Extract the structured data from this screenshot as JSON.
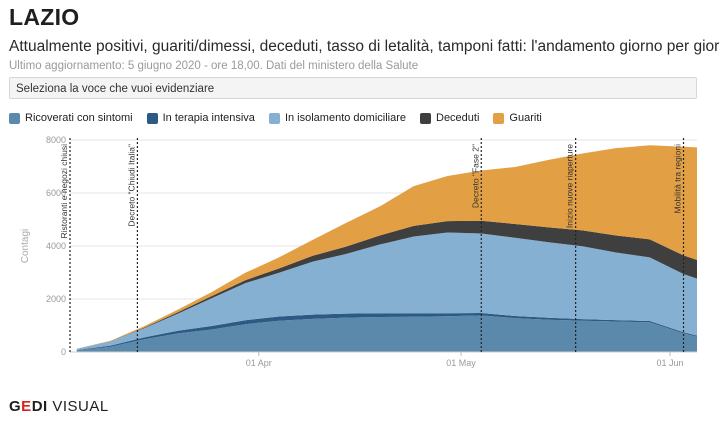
{
  "header": {
    "title": "LAZIO",
    "subtitle": "Attualmente positivi, guariti/dimessi, deceduti, tasso di letalità, tamponi fatti: l'andamento giorno per giorno",
    "updated": "Ultimo aggiornamento: 5 giugno 2020 - ore 18,00. Dati del ministero della Salute"
  },
  "selector": {
    "label": "Seleziona la voce che vuoi evidenziare"
  },
  "logo": {
    "brand_g": "G",
    "brand_e": "E",
    "brand_di": "DI",
    "unit": " VISUAL"
  },
  "colors": {
    "ricoverati": "#5b89ab",
    "terapia": "#2d5a83",
    "isolamento": "#86b0d2",
    "deceduti": "#3f3f3f",
    "guariti": "#e29f44"
  },
  "chart_data": {
    "type": "area",
    "stacked": true,
    "x": [
      "2020-03-05",
      "2020-03-10",
      "2020-03-15",
      "2020-03-20",
      "2020-03-25",
      "2020-03-30",
      "2020-04-04",
      "2020-04-09",
      "2020-04-14",
      "2020-04-19",
      "2020-04-24",
      "2020-04-29",
      "2020-05-04",
      "2020-05-09",
      "2020-05-14",
      "2020-05-19",
      "2020-05-24",
      "2020-05-29",
      "2020-06-03",
      "2020-06-05"
    ],
    "series": [
      {
        "name": "Ricoverati con sintomi",
        "values": [
          60,
          200,
          480,
          700,
          850,
          1050,
          1180,
          1250,
          1300,
          1320,
          1330,
          1350,
          1380,
          1280,
          1220,
          1180,
          1150,
          1120,
          700,
          580
        ]
      },
      {
        "name": "In terapia intensiva",
        "values": [
          15,
          40,
          70,
          100,
          130,
          150,
          160,
          160,
          150,
          140,
          130,
          110,
          90,
          80,
          70,
          60,
          55,
          50,
          45,
          40
        ]
      },
      {
        "name": "In isolamento domiciliare",
        "values": [
          45,
          160,
          350,
          650,
          1050,
          1400,
          1650,
          2000,
          2250,
          2600,
          2900,
          3050,
          3000,
          2950,
          2850,
          2750,
          2550,
          2400,
          2200,
          2150
        ]
      },
      {
        "name": "Deceduti",
        "values": [
          0,
          5,
          20,
          50,
          80,
          110,
          160,
          220,
          280,
          340,
          400,
          430,
          480,
          520,
          560,
          600,
          640,
          680,
          700,
          700
        ]
      },
      {
        "name": "Guariti",
        "values": [
          0,
          20,
          50,
          100,
          150,
          280,
          420,
          600,
          900,
          1100,
          1500,
          1700,
          1900,
          2150,
          2550,
          2900,
          3300,
          3550,
          4100,
          4250
        ]
      }
    ],
    "ylabel": "Contagi",
    "ylim": [
      0,
      8000
    ],
    "yticks": [
      0,
      2000,
      4000,
      6000,
      8000
    ],
    "xticks": [
      {
        "date": "2020-04-01",
        "label": "01 Apr"
      },
      {
        "date": "2020-05-01",
        "label": "01 May"
      },
      {
        "date": "2020-06-01",
        "label": "01 Jun"
      }
    ],
    "annotations": [
      {
        "date": "2020-03-04",
        "label": "Ristoranti e negozi chiusi"
      },
      {
        "date": "2020-03-14",
        "label": "Decreto \"Chiudi Italia\""
      },
      {
        "date": "2020-05-04",
        "label": "Decreto \"Fase 2\""
      },
      {
        "date": "2020-05-18",
        "label": "Inizio nuove riaperture"
      },
      {
        "date": "2020-06-03",
        "label": "Mobilità tra regioni"
      }
    ],
    "grid": true,
    "legend": "top-left"
  }
}
